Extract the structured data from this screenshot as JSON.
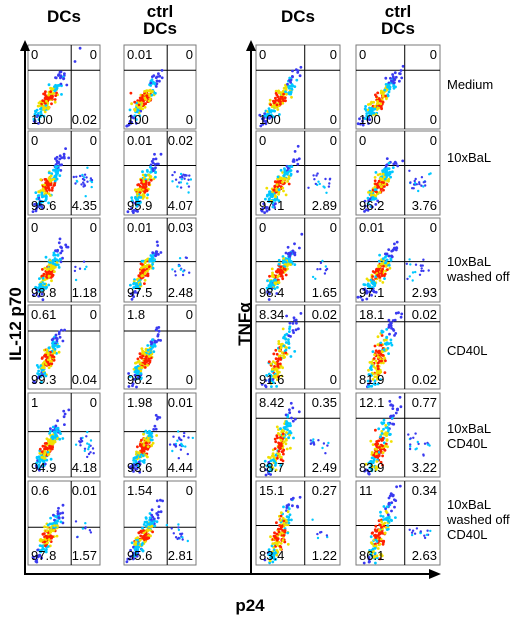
{
  "column_headers": [
    "DCs",
    "ctrl\nDCs",
    "DCs",
    "ctrl\nDCs"
  ],
  "y_axis_left": "IL-12 p70",
  "y_axis_right": "TNFα",
  "x_axis": "p24",
  "row_labels": [
    "Medium",
    "10xBaL",
    "10xBaL\nwashed off",
    "CD40L",
    "10xBaL\nCD40L",
    "10xBaL\nwashed off\nCD40L"
  ],
  "panels": [
    [
      {
        "tl": "0",
        "tr": "0",
        "bl": "100",
        "br": "0.02"
      },
      {
        "tl": "0.01",
        "tr": "0",
        "bl": "100",
        "br": "0"
      },
      {
        "tl": "0",
        "tr": "0",
        "bl": "100",
        "br": "0"
      },
      {
        "tl": "0",
        "tr": "0",
        "bl": "100",
        "br": "0"
      }
    ],
    [
      {
        "tl": "0",
        "tr": "0",
        "bl": "95.6",
        "br": "4.35"
      },
      {
        "tl": "0.01",
        "tr": "0.02",
        "bl": "95.9",
        "br": "4.07"
      },
      {
        "tl": "0",
        "tr": "0",
        "bl": "97.1",
        "br": "2.89"
      },
      {
        "tl": "0",
        "tr": "0",
        "bl": "96.2",
        "br": "3.76"
      }
    ],
    [
      {
        "tl": "0",
        "tr": "0",
        "bl": "98.8",
        "br": "1.18"
      },
      {
        "tl": "0.01",
        "tr": "0.03",
        "bl": "97.5",
        "br": "2.48"
      },
      {
        "tl": "0",
        "tr": "0",
        "bl": "98.4",
        "br": "1.65"
      },
      {
        "tl": "0.01",
        "tr": "0",
        "bl": "97.1",
        "br": "2.93"
      }
    ],
    [
      {
        "tl": "0.61",
        "tr": "0",
        "bl": "99.3",
        "br": "0.04"
      },
      {
        "tl": "1.8",
        "tr": "0",
        "bl": "98.2",
        "br": "0"
      },
      {
        "tl": "8.34",
        "tr": "0.02",
        "bl": "91.6",
        "br": "0"
      },
      {
        "tl": "18.1",
        "tr": "0.02",
        "bl": "81.9",
        "br": "0.02"
      }
    ],
    [
      {
        "tl": "1",
        "tr": "0",
        "bl": "94.9",
        "br": "4.18"
      },
      {
        "tl": "1.98",
        "tr": "0.01",
        "bl": "93.6",
        "br": "4.44"
      },
      {
        "tl": "8.42",
        "tr": "0.35",
        "bl": "88.7",
        "br": "2.49"
      },
      {
        "tl": "12.1",
        "tr": "0.77",
        "bl": "83.9",
        "br": "3.22"
      }
    ],
    [
      {
        "tl": "0.6",
        "tr": "0.01",
        "bl": "97.8",
        "br": "1.57"
      },
      {
        "tl": "1.54",
        "tr": "0",
        "bl": "95.6",
        "br": "2.81"
      },
      {
        "tl": "15.1",
        "tr": "0.27",
        "bl": "83.4",
        "br": "1.22"
      },
      {
        "tl": "11",
        "tr": "0.34",
        "bl": "86.1",
        "br": "2.63"
      }
    ]
  ],
  "colors": {
    "frame": "#7a7a7a",
    "line": "#000000",
    "dots_low": "#3a3af0",
    "dots_mid": "#00c8ff",
    "dots_high": "#f0e000",
    "dots_core": "#ff2000"
  }
}
